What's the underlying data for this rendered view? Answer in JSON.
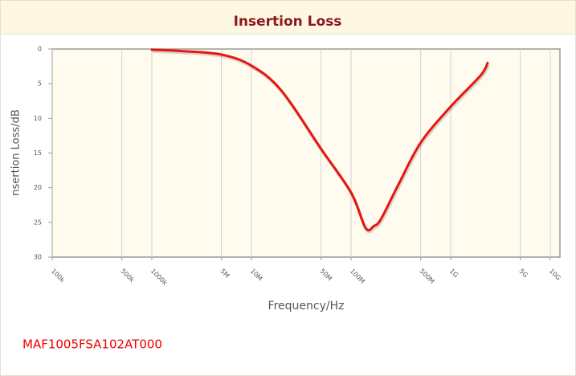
{
  "chart_data": {
    "type": "line",
    "title": "Insertion Loss",
    "xlabel": "Frequency/Hz",
    "ylabel": "nsertion Loss/dB",
    "caption": "MAF1005FSA102AT000",
    "x": [
      1000000,
      2000000,
      5000000,
      10000000,
      20000000,
      50000000,
      100000000,
      140000000,
      170000000,
      200000000,
      300000000,
      500000000,
      1000000000,
      2000000000,
      2350000000
    ],
    "series": [
      {
        "color": "#e8150f",
        "values": [
          0.1,
          0.3,
          0.8,
          2.4,
          6,
          14.4,
          20.7,
          25.8,
          25.5,
          24.5,
          19.5,
          13.5,
          8.3,
          3.8,
          2
        ]
      }
    ],
    "xlog": true,
    "yinvert": true,
    "grid": true,
    "xlim": [
      100000,
      12500000000
    ],
    "ylim": [
      0,
      30
    ],
    "yticks": [
      0,
      5,
      10,
      15,
      20,
      25,
      30
    ],
    "xticks": [
      {
        "value": 100000,
        "label": "100k"
      },
      {
        "value": 500000,
        "label": "500k"
      },
      {
        "value": 1000000,
        "label": "1000k"
      },
      {
        "value": 5000000,
        "label": "5M"
      },
      {
        "value": 10000000,
        "label": "10M"
      },
      {
        "value": 50000000,
        "label": "50M"
      },
      {
        "value": 100000000,
        "label": "100M"
      },
      {
        "value": 500000000,
        "label": "500M"
      },
      {
        "value": 1000000000,
        "label": "1G"
      },
      {
        "value": 5000000000,
        "label": "5G"
      },
      {
        "value": 10000000000,
        "label": "10G"
      }
    ]
  }
}
